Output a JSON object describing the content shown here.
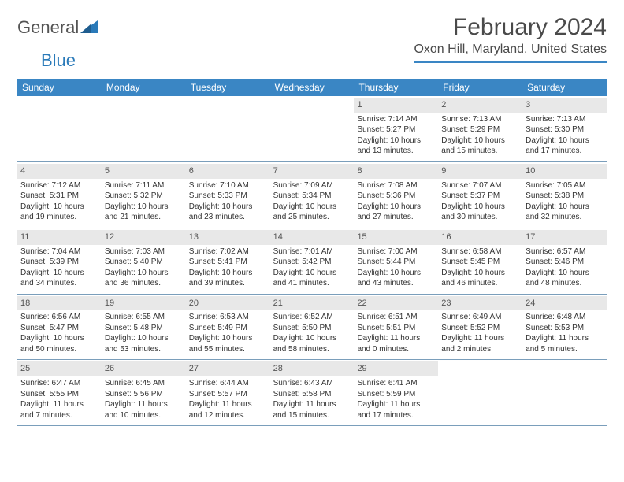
{
  "branding": {
    "logo_part1": "General",
    "logo_part2": "Blue",
    "logo_icon_color": "#2a7ab9"
  },
  "header": {
    "month_title": "February 2024",
    "location": "Oxon Hill, Maryland, United States"
  },
  "colors": {
    "header_bar": "#3a86c4",
    "header_text": "#ffffff",
    "daynum_bg": "#e8e8e8",
    "row_border": "#7a9ebb",
    "body_text": "#333333"
  },
  "day_names": [
    "Sunday",
    "Monday",
    "Tuesday",
    "Wednesday",
    "Thursday",
    "Friday",
    "Saturday"
  ],
  "weeks": [
    [
      null,
      null,
      null,
      null,
      {
        "num": "1",
        "sunrise": "Sunrise: 7:14 AM",
        "sunset": "Sunset: 5:27 PM",
        "daylight1": "Daylight: 10 hours",
        "daylight2": "and 13 minutes."
      },
      {
        "num": "2",
        "sunrise": "Sunrise: 7:13 AM",
        "sunset": "Sunset: 5:29 PM",
        "daylight1": "Daylight: 10 hours",
        "daylight2": "and 15 minutes."
      },
      {
        "num": "3",
        "sunrise": "Sunrise: 7:13 AM",
        "sunset": "Sunset: 5:30 PM",
        "daylight1": "Daylight: 10 hours",
        "daylight2": "and 17 minutes."
      }
    ],
    [
      {
        "num": "4",
        "sunrise": "Sunrise: 7:12 AM",
        "sunset": "Sunset: 5:31 PM",
        "daylight1": "Daylight: 10 hours",
        "daylight2": "and 19 minutes."
      },
      {
        "num": "5",
        "sunrise": "Sunrise: 7:11 AM",
        "sunset": "Sunset: 5:32 PM",
        "daylight1": "Daylight: 10 hours",
        "daylight2": "and 21 minutes."
      },
      {
        "num": "6",
        "sunrise": "Sunrise: 7:10 AM",
        "sunset": "Sunset: 5:33 PM",
        "daylight1": "Daylight: 10 hours",
        "daylight2": "and 23 minutes."
      },
      {
        "num": "7",
        "sunrise": "Sunrise: 7:09 AM",
        "sunset": "Sunset: 5:34 PM",
        "daylight1": "Daylight: 10 hours",
        "daylight2": "and 25 minutes."
      },
      {
        "num": "8",
        "sunrise": "Sunrise: 7:08 AM",
        "sunset": "Sunset: 5:36 PM",
        "daylight1": "Daylight: 10 hours",
        "daylight2": "and 27 minutes."
      },
      {
        "num": "9",
        "sunrise": "Sunrise: 7:07 AM",
        "sunset": "Sunset: 5:37 PM",
        "daylight1": "Daylight: 10 hours",
        "daylight2": "and 30 minutes."
      },
      {
        "num": "10",
        "sunrise": "Sunrise: 7:05 AM",
        "sunset": "Sunset: 5:38 PM",
        "daylight1": "Daylight: 10 hours",
        "daylight2": "and 32 minutes."
      }
    ],
    [
      {
        "num": "11",
        "sunrise": "Sunrise: 7:04 AM",
        "sunset": "Sunset: 5:39 PM",
        "daylight1": "Daylight: 10 hours",
        "daylight2": "and 34 minutes."
      },
      {
        "num": "12",
        "sunrise": "Sunrise: 7:03 AM",
        "sunset": "Sunset: 5:40 PM",
        "daylight1": "Daylight: 10 hours",
        "daylight2": "and 36 minutes."
      },
      {
        "num": "13",
        "sunrise": "Sunrise: 7:02 AM",
        "sunset": "Sunset: 5:41 PM",
        "daylight1": "Daylight: 10 hours",
        "daylight2": "and 39 minutes."
      },
      {
        "num": "14",
        "sunrise": "Sunrise: 7:01 AM",
        "sunset": "Sunset: 5:42 PM",
        "daylight1": "Daylight: 10 hours",
        "daylight2": "and 41 minutes."
      },
      {
        "num": "15",
        "sunrise": "Sunrise: 7:00 AM",
        "sunset": "Sunset: 5:44 PM",
        "daylight1": "Daylight: 10 hours",
        "daylight2": "and 43 minutes."
      },
      {
        "num": "16",
        "sunrise": "Sunrise: 6:58 AM",
        "sunset": "Sunset: 5:45 PM",
        "daylight1": "Daylight: 10 hours",
        "daylight2": "and 46 minutes."
      },
      {
        "num": "17",
        "sunrise": "Sunrise: 6:57 AM",
        "sunset": "Sunset: 5:46 PM",
        "daylight1": "Daylight: 10 hours",
        "daylight2": "and 48 minutes."
      }
    ],
    [
      {
        "num": "18",
        "sunrise": "Sunrise: 6:56 AM",
        "sunset": "Sunset: 5:47 PM",
        "daylight1": "Daylight: 10 hours",
        "daylight2": "and 50 minutes."
      },
      {
        "num": "19",
        "sunrise": "Sunrise: 6:55 AM",
        "sunset": "Sunset: 5:48 PM",
        "daylight1": "Daylight: 10 hours",
        "daylight2": "and 53 minutes."
      },
      {
        "num": "20",
        "sunrise": "Sunrise: 6:53 AM",
        "sunset": "Sunset: 5:49 PM",
        "daylight1": "Daylight: 10 hours",
        "daylight2": "and 55 minutes."
      },
      {
        "num": "21",
        "sunrise": "Sunrise: 6:52 AM",
        "sunset": "Sunset: 5:50 PM",
        "daylight1": "Daylight: 10 hours",
        "daylight2": "and 58 minutes."
      },
      {
        "num": "22",
        "sunrise": "Sunrise: 6:51 AM",
        "sunset": "Sunset: 5:51 PM",
        "daylight1": "Daylight: 11 hours",
        "daylight2": "and 0 minutes."
      },
      {
        "num": "23",
        "sunrise": "Sunrise: 6:49 AM",
        "sunset": "Sunset: 5:52 PM",
        "daylight1": "Daylight: 11 hours",
        "daylight2": "and 2 minutes."
      },
      {
        "num": "24",
        "sunrise": "Sunrise: 6:48 AM",
        "sunset": "Sunset: 5:53 PM",
        "daylight1": "Daylight: 11 hours",
        "daylight2": "and 5 minutes."
      }
    ],
    [
      {
        "num": "25",
        "sunrise": "Sunrise: 6:47 AM",
        "sunset": "Sunset: 5:55 PM",
        "daylight1": "Daylight: 11 hours",
        "daylight2": "and 7 minutes."
      },
      {
        "num": "26",
        "sunrise": "Sunrise: 6:45 AM",
        "sunset": "Sunset: 5:56 PM",
        "daylight1": "Daylight: 11 hours",
        "daylight2": "and 10 minutes."
      },
      {
        "num": "27",
        "sunrise": "Sunrise: 6:44 AM",
        "sunset": "Sunset: 5:57 PM",
        "daylight1": "Daylight: 11 hours",
        "daylight2": "and 12 minutes."
      },
      {
        "num": "28",
        "sunrise": "Sunrise: 6:43 AM",
        "sunset": "Sunset: 5:58 PM",
        "daylight1": "Daylight: 11 hours",
        "daylight2": "and 15 minutes."
      },
      {
        "num": "29",
        "sunrise": "Sunrise: 6:41 AM",
        "sunset": "Sunset: 5:59 PM",
        "daylight1": "Daylight: 11 hours",
        "daylight2": "and 17 minutes."
      },
      null,
      null
    ]
  ]
}
